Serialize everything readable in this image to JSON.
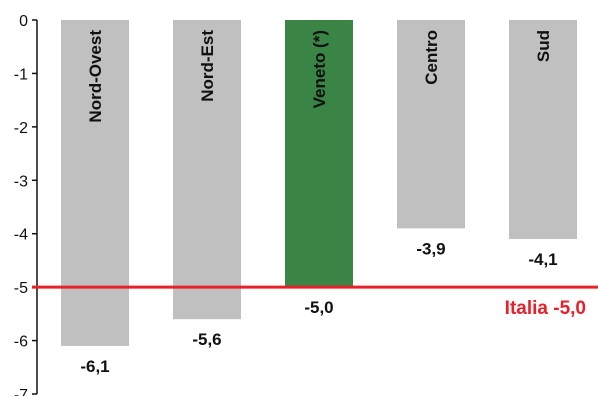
{
  "chart_data": {
    "type": "bar",
    "categories": [
      "Nord-Ovest",
      "Nord-Est",
      "Veneto (*)",
      "Centro",
      "Sud"
    ],
    "values": [
      -6.1,
      -5.6,
      -5.0,
      -3.9,
      -4.1
    ],
    "value_labels": [
      "-6,1",
      "-5,6",
      "-5,0",
      "-3,9",
      "-4,1"
    ],
    "bar_colors": [
      "#c0c0c0",
      "#c0c0c0",
      "#3a8545",
      "#c0c0c0",
      "#c0c0c0"
    ],
    "highlight_color": "#3a8545",
    "ylim": [
      -7,
      0
    ],
    "yticks": [
      0,
      -1,
      -2,
      -3,
      -4,
      -5,
      -6,
      -7
    ],
    "ytick_labels": [
      "0",
      "-1",
      "-2",
      "-3",
      "-4",
      "-5",
      "-6",
      "-7"
    ],
    "reference_line": {
      "value": -5.0,
      "label": "Italia -5,0",
      "color": "#e8202a"
    },
    "grid": false,
    "title": "",
    "xlabel": "",
    "ylabel": ""
  }
}
